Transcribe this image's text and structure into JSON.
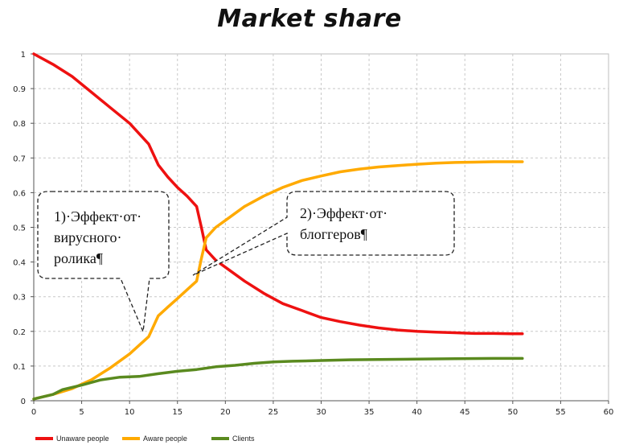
{
  "chart_data": {
    "type": "line",
    "title": "Market share",
    "xlabel": "",
    "ylabel": "",
    "xlim": [
      0,
      60
    ],
    "ylim": [
      0,
      1
    ],
    "x_ticks": [
      "0",
      "5",
      "10",
      "15",
      "20",
      "25",
      "30",
      "35",
      "40",
      "45",
      "50",
      "55",
      "60"
    ],
    "y_ticks": [
      "0",
      "0.1",
      "0.2",
      "0.3",
      "0.4",
      "0.5",
      "0.6",
      "0.7",
      "0.8",
      "0.9",
      "1"
    ],
    "grid": true,
    "legend_position": "bottom-left",
    "series": [
      {
        "name": "Unaware people",
        "color": "#ee1111",
        "points": [
          [
            0,
            1.0
          ],
          [
            2,
            0.97
          ],
          [
            4,
            0.935
          ],
          [
            6,
            0.89
          ],
          [
            8,
            0.845
          ],
          [
            10,
            0.8
          ],
          [
            12,
            0.74
          ],
          [
            13,
            0.68
          ],
          [
            14,
            0.645
          ],
          [
            15,
            0.615
          ],
          [
            16,
            0.59
          ],
          [
            17,
            0.56
          ],
          [
            17.5,
            0.5
          ],
          [
            18,
            0.435
          ],
          [
            19,
            0.405
          ],
          [
            20,
            0.385
          ],
          [
            22,
            0.345
          ],
          [
            24,
            0.31
          ],
          [
            26,
            0.28
          ],
          [
            28,
            0.26
          ],
          [
            30,
            0.24
          ],
          [
            32,
            0.228
          ],
          [
            34,
            0.218
          ],
          [
            36,
            0.21
          ],
          [
            38,
            0.204
          ],
          [
            40,
            0.2
          ],
          [
            42,
            0.198
          ],
          [
            44,
            0.196
          ],
          [
            46,
            0.194
          ],
          [
            48,
            0.194
          ],
          [
            50,
            0.193
          ],
          [
            51,
            0.193
          ]
        ]
      },
      {
        "name": "Aware people",
        "color": "#ffaa00",
        "points": [
          [
            0,
            0.005
          ],
          [
            2,
            0.018
          ],
          [
            4,
            0.035
          ],
          [
            6,
            0.06
          ],
          [
            8,
            0.095
          ],
          [
            10,
            0.135
          ],
          [
            12,
            0.185
          ],
          [
            13,
            0.245
          ],
          [
            14,
            0.27
          ],
          [
            15,
            0.295
          ],
          [
            16,
            0.32
          ],
          [
            17,
            0.345
          ],
          [
            17.5,
            0.41
          ],
          [
            18,
            0.47
          ],
          [
            19,
            0.5
          ],
          [
            20,
            0.52
          ],
          [
            22,
            0.56
          ],
          [
            24,
            0.59
          ],
          [
            26,
            0.615
          ],
          [
            28,
            0.635
          ],
          [
            30,
            0.648
          ],
          [
            32,
            0.66
          ],
          [
            34,
            0.668
          ],
          [
            36,
            0.674
          ],
          [
            38,
            0.678
          ],
          [
            40,
            0.682
          ],
          [
            42,
            0.685
          ],
          [
            44,
            0.687
          ],
          [
            46,
            0.688
          ],
          [
            48,
            0.689
          ],
          [
            50,
            0.689
          ],
          [
            51,
            0.689
          ]
        ]
      },
      {
        "name": "Clients",
        "color": "#5a8a1f",
        "points": [
          [
            0,
            0.005
          ],
          [
            2,
            0.018
          ],
          [
            3,
            0.032
          ],
          [
            5,
            0.045
          ],
          [
            7,
            0.06
          ],
          [
            9,
            0.068
          ],
          [
            11,
            0.07
          ],
          [
            13,
            0.078
          ],
          [
            15,
            0.085
          ],
          [
            17,
            0.09
          ],
          [
            19,
            0.098
          ],
          [
            21,
            0.102
          ],
          [
            23,
            0.108
          ],
          [
            25,
            0.112
          ],
          [
            27,
            0.114
          ],
          [
            30,
            0.116
          ],
          [
            33,
            0.118
          ],
          [
            36,
            0.119
          ],
          [
            40,
            0.12
          ],
          [
            44,
            0.121
          ],
          [
            48,
            0.122
          ],
          [
            51,
            0.122
          ]
        ]
      }
    ],
    "annotations": [
      {
        "lines": [
          "1)·Эффект·от·",
          "вирусного·",
          "ролика¶"
        ]
      },
      {
        "lines": [
          "2)·Эффект·от·",
          "блоггеров¶"
        ]
      }
    ]
  }
}
